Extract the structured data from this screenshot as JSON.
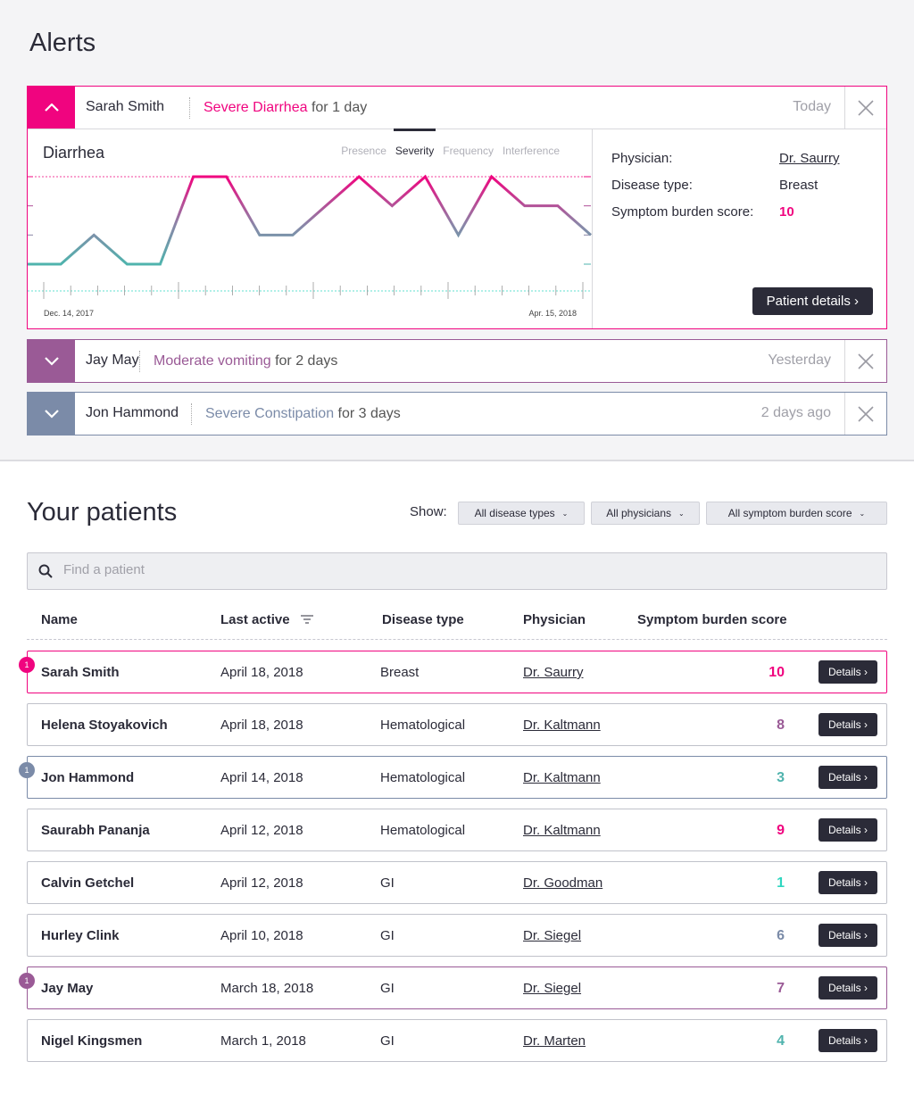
{
  "colors": {
    "pink": "#f0047f",
    "purple": "#9a5a96",
    "slate": "#7b8ba8",
    "teal": "#4fb3ad",
    "teal_bright": "#2fd6c0",
    "dark": "#2b2b38"
  },
  "alerts_title": "Alerts",
  "alerts": [
    {
      "name": "Sarah Smith",
      "symptom": "Severe Diarrhea",
      "duration": "for 1 day",
      "when": "Today",
      "expanded": true,
      "color": "#f0047f",
      "detail": {
        "chart_title": "Diarrhea",
        "tabs": [
          "Presence",
          "Severity",
          "Frequency",
          "Interference"
        ],
        "active_tab": "Severity",
        "physician_label": "Physician:",
        "physician": "Dr. Saurry",
        "disease_label": "Disease type:",
        "disease": "Breast",
        "score_label": "Symptom burden score:",
        "score": "10",
        "button": "Patient details ›"
      }
    },
    {
      "name": "Jay May",
      "symptom": "Moderate vomiting",
      "duration": "for 2 days",
      "when": "Yesterday",
      "expanded": false,
      "color": "#9a5a96"
    },
    {
      "name": "Jon Hammond",
      "symptom": "Severe Constipation",
      "duration": "for 3 days",
      "when": "2 days ago",
      "expanded": false,
      "color": "#7b8ba8"
    }
  ],
  "chart_data": {
    "type": "line",
    "title": "Diarrhea",
    "xlabel": "",
    "ylabel": "",
    "x_start_label": "Dec. 14, 2017",
    "x_end_label": "Apr. 15, 2018",
    "ylim": [
      0,
      3
    ],
    "values": [
      0,
      0,
      1,
      0,
      0,
      3,
      3,
      1,
      1,
      2,
      3,
      2,
      3,
      1,
      3,
      2,
      2,
      1
    ],
    "grid": "dotted lines at min and max"
  },
  "patients": {
    "title": "Your patients",
    "show_label": "Show:",
    "filters": [
      "All disease types",
      "All physicians",
      "All symptom burden score"
    ],
    "search_placeholder": "Find a patient",
    "columns": [
      "Name",
      "Last active",
      "Disease type",
      "Physician",
      "Symptom burden score"
    ],
    "rows": [
      {
        "name": "Sarah Smith",
        "last": "April 18, 2018",
        "disease": "Breast",
        "physician": "Dr. Saurry",
        "score": "10",
        "score_color": "#f0047f",
        "badge": "1",
        "border": "#f0047f"
      },
      {
        "name": "Helena Stoyakovich",
        "last": "April 18, 2018",
        "disease": "Hematological",
        "physician": "Dr. Kaltmann",
        "score": "8",
        "score_color": "#9a5a96"
      },
      {
        "name": "Jon Hammond",
        "last": "April 14, 2018",
        "disease": "Hematological",
        "physician": "Dr. Kaltmann",
        "score": "3",
        "score_color": "#4fb3ad",
        "badge": "1",
        "border": "#7b8ba8"
      },
      {
        "name": "Saurabh Pananja",
        "last": "April 12, 2018",
        "disease": "Hematological",
        "physician": "Dr. Kaltmann",
        "score": "9",
        "score_color": "#f0047f"
      },
      {
        "name": "Calvin Getchel",
        "last": "April 12, 2018",
        "disease": "GI",
        "physician": "Dr. Goodman",
        "score": "1",
        "score_color": "#2fd6c0"
      },
      {
        "name": "Hurley Clink",
        "last": "April 10, 2018",
        "disease": "GI",
        "physician": "Dr. Siegel",
        "score": "6",
        "score_color": "#7b8ba8"
      },
      {
        "name": "Jay May",
        "last": "March 18, 2018",
        "disease": "GI",
        "physician": "Dr. Siegel",
        "score": "7",
        "score_color": "#9a5a96",
        "badge": "1",
        "border": "#9a5a96"
      },
      {
        "name": "Nigel Kingsmen",
        "last": "March 1, 2018",
        "disease": "GI",
        "physician": "Dr. Marten",
        "score": "4",
        "score_color": "#4fb3ad"
      }
    ],
    "details_label": "Details ›"
  }
}
